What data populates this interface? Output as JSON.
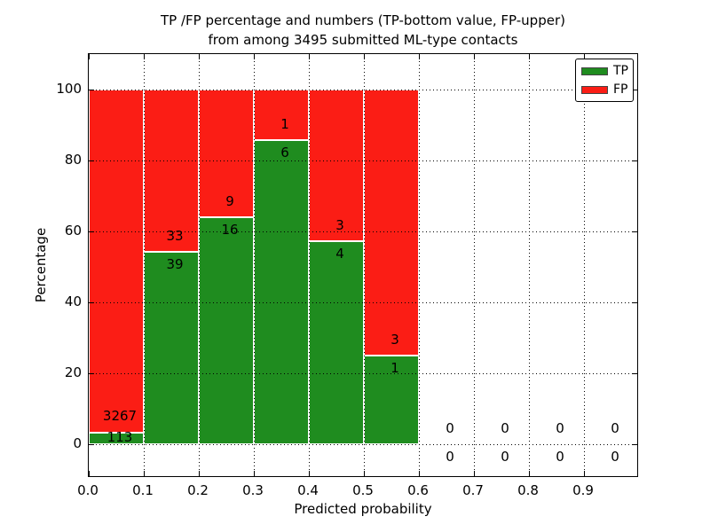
{
  "chart_data": {
    "type": "bar",
    "stacked": true,
    "title": "TP /FP percentage and numbers (TP-bottom value, FP-upper) from among 3495 submitted ML-type contacts",
    "title_lines": [
      "TP /FP percentage and numbers (TP-bottom value, FP-upper)",
      "from among 3495 submitted ML-type contacts"
    ],
    "xlabel": "Predicted probability",
    "ylabel": "Percentage",
    "xlim": [
      0.0,
      1.0
    ],
    "ylim": [
      -10,
      110
    ],
    "grid": "dotted",
    "x_tick_labels": [
      "0.0",
      "0.1",
      "0.2",
      "0.3",
      "0.4",
      "0.5",
      "0.6",
      "0.7",
      "0.8",
      "0.9"
    ],
    "y_tick_labels": [
      "0",
      "20",
      "40",
      "60",
      "80",
      "100"
    ],
    "y_tick_values": [
      0,
      20,
      40,
      60,
      80,
      100
    ],
    "colors": {
      "tp": "#1f8c1f",
      "fp": "#fb1d15",
      "grid": "#000000",
      "background": "#ffffff"
    },
    "legend": {
      "position": "upper-right",
      "entries": [
        {
          "label": "TP",
          "color_key": "tp"
        },
        {
          "label": "FP",
          "color_key": "fp"
        }
      ]
    },
    "bins": [
      {
        "x_start": 0.0,
        "x_end": 0.1,
        "tp_count": 113,
        "fp_count": 3267,
        "tp_pct": 3.34,
        "fp_pct": 96.66
      },
      {
        "x_start": 0.1,
        "x_end": 0.2,
        "tp_count": 39,
        "fp_count": 33,
        "tp_pct": 54.17,
        "fp_pct": 45.83
      },
      {
        "x_start": 0.2,
        "x_end": 0.3,
        "tp_count": 16,
        "fp_count": 9,
        "tp_pct": 64.0,
        "fp_pct": 36.0
      },
      {
        "x_start": 0.3,
        "x_end": 0.4,
        "tp_count": 6,
        "fp_count": 1,
        "tp_pct": 85.71,
        "fp_pct": 14.29
      },
      {
        "x_start": 0.4,
        "x_end": 0.5,
        "tp_count": 4,
        "fp_count": 3,
        "tp_pct": 57.14,
        "fp_pct": 42.86
      },
      {
        "x_start": 0.5,
        "x_end": 0.6,
        "tp_count": 1,
        "fp_count": 3,
        "tp_pct": 25.0,
        "fp_pct": 75.0
      }
    ],
    "empty_bins": [
      {
        "x_center": 0.65,
        "tp_count": 0,
        "fp_count": 0
      },
      {
        "x_center": 0.75,
        "tp_count": 0,
        "fp_count": 0
      },
      {
        "x_center": 0.85,
        "tp_count": 0,
        "fp_count": 0
      },
      {
        "x_center": 0.95,
        "tp_count": 0,
        "fp_count": 0
      }
    ],
    "total_contacts": 3495
  }
}
